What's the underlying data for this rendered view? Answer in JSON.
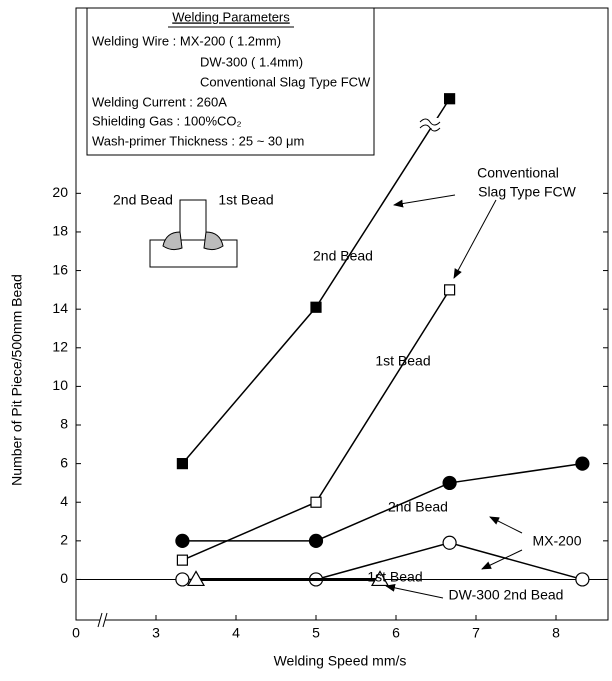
{
  "chart_data": {
    "type": "line",
    "xlabel": "Welding Speed     mm/s",
    "ylabel": "Number of Pit Piece/500mm Bead",
    "xlim": [
      0,
      8.65
    ],
    "x_break": [
      0,
      2
    ],
    "xticks": [
      0,
      3,
      4,
      5,
      6,
      7,
      8
    ],
    "ylim": [
      -2.1,
      29.6
    ],
    "yticks": [
      0,
      2,
      4,
      6,
      8,
      10,
      12,
      14,
      16,
      18,
      20
    ],
    "color": "#000000",
    "series": [
      {
        "marker": "square",
        "filled": true,
        "x": [
          3.33,
          5,
          6.67
        ],
        "values": [
          6,
          14.1,
          24.9
        ]
      },
      {
        "marker": "square",
        "filled": false,
        "x": [
          3.33,
          5,
          6.67
        ],
        "values": [
          1,
          4,
          15
        ]
      },
      {
        "marker": "circle",
        "filled": true,
        "x": [
          3.33,
          5,
          6.67,
          8.33
        ],
        "values": [
          2,
          2,
          5,
          6
        ]
      },
      {
        "marker": "circle",
        "filled": false,
        "x": [
          3.33,
          5,
          6.67,
          8.33
        ],
        "values": [
          0,
          0,
          1.9,
          0
        ]
      },
      {
        "marker": "triangle",
        "filled": false,
        "x": [
          3.5,
          5.8
        ],
        "values": [
          0,
          0
        ]
      }
    ],
    "annotations": [
      "2nd Bead",
      "1st Bead",
      "2nd Bead",
      "1st Bead",
      "Conventional",
      "Slag Type FCW",
      "MX-200",
      "DW-300 2nd Bead",
      "2nd Bead",
      "1st Bead"
    ],
    "parameters": {
      "title": "Welding Parameters",
      "lines": [
        "Welding Wire : MX-200 (   1.2mm)",
        "DW-300 (   1.4mm)",
        "Conventional Slag Type FCW",
        "Welding Current : 260A",
        "Shielding Gas    : 100%CO₂",
        "Wash-primer Thickness : 25 ~ 30 μm"
      ]
    }
  }
}
